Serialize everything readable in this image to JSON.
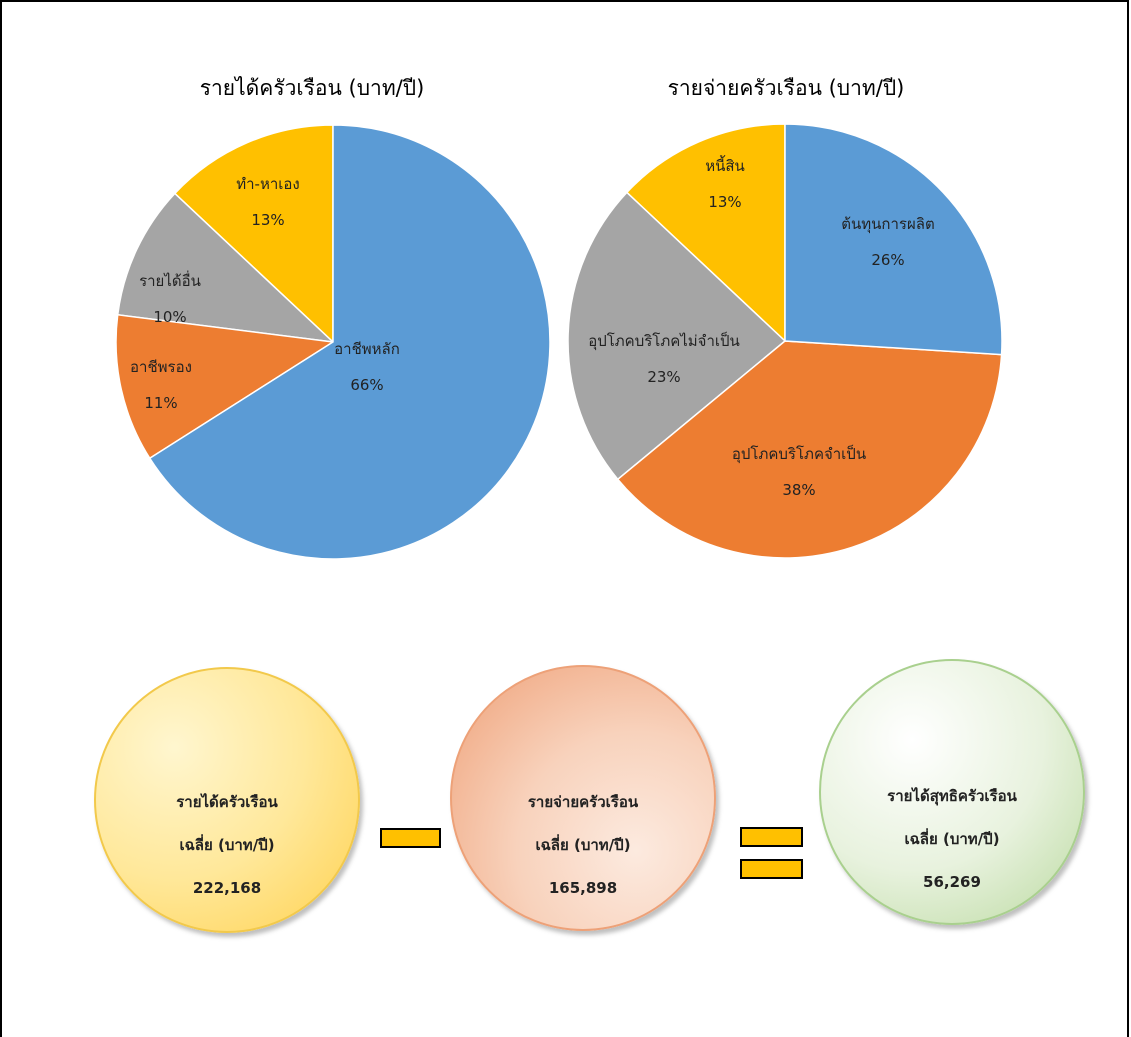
{
  "chart_data": [
    {
      "type": "pie",
      "title": "รายได้ครัวเรือน (บาท/ปี)",
      "start": "top",
      "direction": "clockwise",
      "slices": [
        {
          "label": "อาชีพหลัก",
          "value": 66,
          "value_label": "66%",
          "color": "#5B9BD5"
        },
        {
          "label": "อาชีพรอง",
          "value": 11,
          "value_label": "11%",
          "color": "#ED7D31"
        },
        {
          "label": "รายได้อื่น",
          "value": 10,
          "value_label": "10%",
          "color": "#A5A5A5"
        },
        {
          "label": "ทำ-หาเอง",
          "value": 13,
          "value_label": "13%",
          "color": "#FFC000"
        }
      ]
    },
    {
      "type": "pie",
      "title": "รายจ่ายครัวเรือน (บาท/ปี)",
      "start": "top",
      "direction": "clockwise",
      "slices": [
        {
          "label": "ต้นทุนการผลิต",
          "value": 26,
          "value_label": "26%",
          "color": "#5B9BD5"
        },
        {
          "label": "อุปโภคบริโภคจำเป็น",
          "value": 38,
          "value_label": "38%",
          "color": "#ED7D31"
        },
        {
          "label": "อุปโภคบริโภคไม่จำเป็น",
          "value": 23,
          "value_label": "23%",
          "color": "#A5A5A5"
        },
        {
          "label": "หนี้สิน",
          "value": 13,
          "value_label": "13%",
          "color": "#FFC000"
        }
      ]
    }
  ],
  "summary": {
    "income": {
      "line1": "รายได้ครัวเรือน",
      "line2": "เฉลี่ย (บาท/ปี)",
      "value": "222,168"
    },
    "minus_symbol": "-",
    "expense": {
      "line1": "รายจ่ายครัวเรือน",
      "line2": "เฉลี่ย (บาท/ปี)",
      "value": "165,898"
    },
    "equals_symbol": "=",
    "net": {
      "line1": "รายได้สุทธิครัวเรือน",
      "line2": "เฉลี่ย (บาท/ปี)",
      "value": "56,269"
    }
  },
  "colors": {
    "blue": "#5B9BD5",
    "orange": "#ED7D31",
    "gray": "#A5A5A5",
    "gold": "#FFC000",
    "income_circle": "#FFE38A",
    "expense_circle": "#F4B897",
    "net_circle": "#C9E2B3"
  }
}
